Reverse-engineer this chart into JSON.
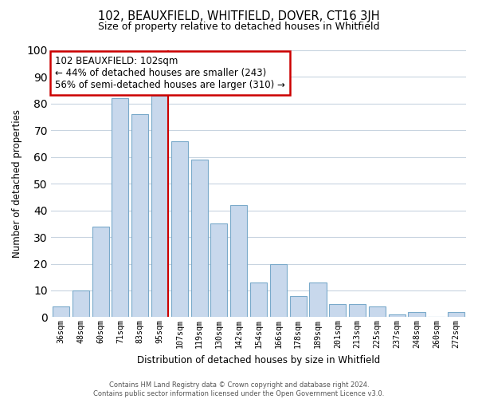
{
  "title": "102, BEAUXFIELD, WHITFIELD, DOVER, CT16 3JH",
  "subtitle": "Size of property relative to detached houses in Whitfield",
  "xlabel": "Distribution of detached houses by size in Whitfield",
  "ylabel": "Number of detached properties",
  "categories": [
    "36sqm",
    "48sqm",
    "60sqm",
    "71sqm",
    "83sqm",
    "95sqm",
    "107sqm",
    "119sqm",
    "130sqm",
    "142sqm",
    "154sqm",
    "166sqm",
    "178sqm",
    "189sqm",
    "201sqm",
    "213sqm",
    "225sqm",
    "237sqm",
    "248sqm",
    "260sqm",
    "272sqm"
  ],
  "values": [
    4,
    10,
    34,
    82,
    76,
    83,
    66,
    59,
    35,
    42,
    13,
    20,
    8,
    13,
    5,
    5,
    4,
    1,
    2,
    0,
    2
  ],
  "bar_color": "#c8d8ec",
  "bar_edge_color": "#7aaaca",
  "highlight_line_color": "#cc0000",
  "annotation_box_edge_color": "#cc0000",
  "annotation_text_line1": "102 BEAUXFIELD: 102sqm",
  "annotation_text_line2": "← 44% of detached houses are smaller (243)",
  "annotation_text_line3": "56% of semi-detached houses are larger (310) →",
  "ylim": [
    0,
    100
  ],
  "yticks": [
    0,
    10,
    20,
    30,
    40,
    50,
    60,
    70,
    80,
    90,
    100
  ],
  "footer_line1": "Contains HM Land Registry data © Crown copyright and database right 2024.",
  "footer_line2": "Contains public sector information licensed under the Open Government Licence v3.0.",
  "background_color": "#ffffff",
  "grid_color": "#c8d4e0"
}
